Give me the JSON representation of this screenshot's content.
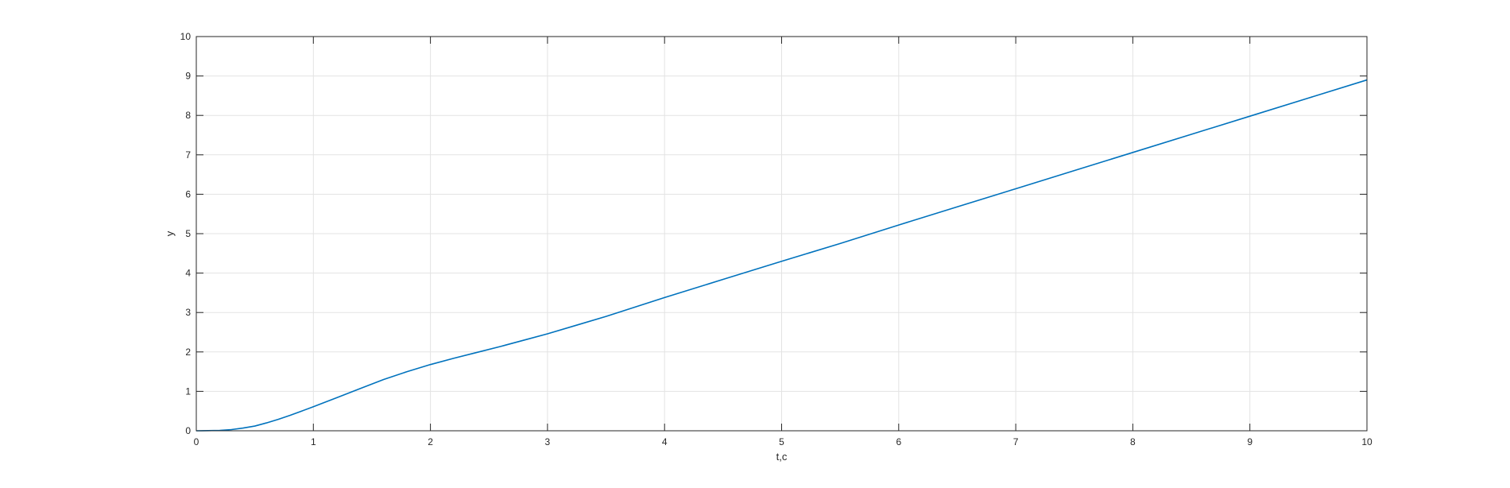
{
  "chart_data": {
    "type": "line",
    "title": "",
    "xlabel": "t,c",
    "ylabel": "y",
    "xlim": [
      0,
      10
    ],
    "ylim": [
      0,
      10
    ],
    "xticks": [
      "0",
      "1",
      "2",
      "3",
      "4",
      "5",
      "6",
      "7",
      "8",
      "9",
      "10"
    ],
    "yticks": [
      "0",
      "1",
      "2",
      "3",
      "4",
      "5",
      "6",
      "7",
      "8",
      "9",
      "10"
    ],
    "grid": true,
    "series": [
      {
        "color": "#0072BD",
        "x": [
          0,
          0.1,
          0.2,
          0.3,
          0.4,
          0.5,
          0.6,
          0.7,
          0.8,
          0.9,
          1.0,
          1.2,
          1.4,
          1.6,
          1.8,
          2.0,
          2.2,
          2.4,
          2.6,
          2.8,
          3.0,
          3.25,
          3.5,
          3.75,
          4.0,
          4.5,
          5.0,
          5.5,
          6.0,
          6.5,
          7.0,
          7.5,
          8.0,
          8.5,
          9.0,
          9.5,
          10.0
        ],
        "y": [
          0,
          0.003,
          0.01,
          0.03,
          0.07,
          0.12,
          0.2,
          0.29,
          0.39,
          0.5,
          0.61,
          0.84,
          1.07,
          1.3,
          1.5,
          1.68,
          1.84,
          1.99,
          2.14,
          2.3,
          2.46,
          2.68,
          2.9,
          3.14,
          3.38,
          3.84,
          4.3,
          4.75,
          5.22,
          5.68,
          6.14,
          6.6,
          7.06,
          7.52,
          7.98,
          8.44,
          8.9
        ]
      }
    ]
  }
}
